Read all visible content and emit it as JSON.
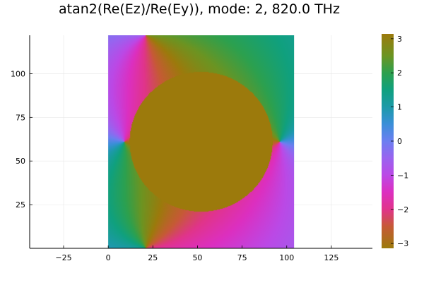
{
  "chart_data": {
    "type": "heatmap",
    "title": "atan2(Re(Ez)/Re(Ey)), mode: 2, 820.0 THz",
    "xlabel": "",
    "ylabel": "",
    "xlim": [
      -44,
      148
    ],
    "ylim": [
      0,
      122
    ],
    "x_ticks": [
      -25,
      0,
      25,
      50,
      75,
      100,
      125
    ],
    "y_ticks": [
      25,
      50,
      75,
      100
    ],
    "grid": true,
    "data_extent": {
      "x": [
        0,
        104
      ],
      "y": [
        0,
        122
      ]
    },
    "colorbar": {
      "range": [
        -3.14159,
        3.14159
      ],
      "ticks": [
        -3,
        -2,
        -1,
        0,
        1,
        2,
        3
      ],
      "colormap": "cyclic phase",
      "stops": [
        {
          "value": -3.14159,
          "color": "#9c7a0c"
        },
        {
          "value": -2.5,
          "color": "#c65a36"
        },
        {
          "value": -2.0,
          "color": "#e0348a"
        },
        {
          "value": -1.5,
          "color": "#dc2fc0"
        },
        {
          "value": -1.0,
          "color": "#bb49e6"
        },
        {
          "value": -0.5,
          "color": "#9963ef"
        },
        {
          "value": 0.0,
          "color": "#6c7ff0"
        },
        {
          "value": 0.5,
          "color": "#3a8fd8"
        },
        {
          "value": 1.0,
          "color": "#1c9aa8"
        },
        {
          "value": 1.5,
          "color": "#10a07e"
        },
        {
          "value": 2.0,
          "color": "#2da04e"
        },
        {
          "value": 2.5,
          "color": "#6c9422"
        },
        {
          "value": 3.14159,
          "color": "#9c7a0c"
        }
      ]
    },
    "features": {
      "circle": {
        "center_x": 52,
        "center_y": 61,
        "radius": 40,
        "phase": 3.14159
      },
      "vortices": [
        {
          "x": 9,
          "y": 61,
          "charge": 1
        },
        {
          "x": 21,
          "y": 122,
          "charge": -1
        },
        {
          "x": 21,
          "y": 0,
          "charge": -1
        },
        {
          "x": 96,
          "y": 61,
          "charge": 1
        }
      ]
    }
  }
}
